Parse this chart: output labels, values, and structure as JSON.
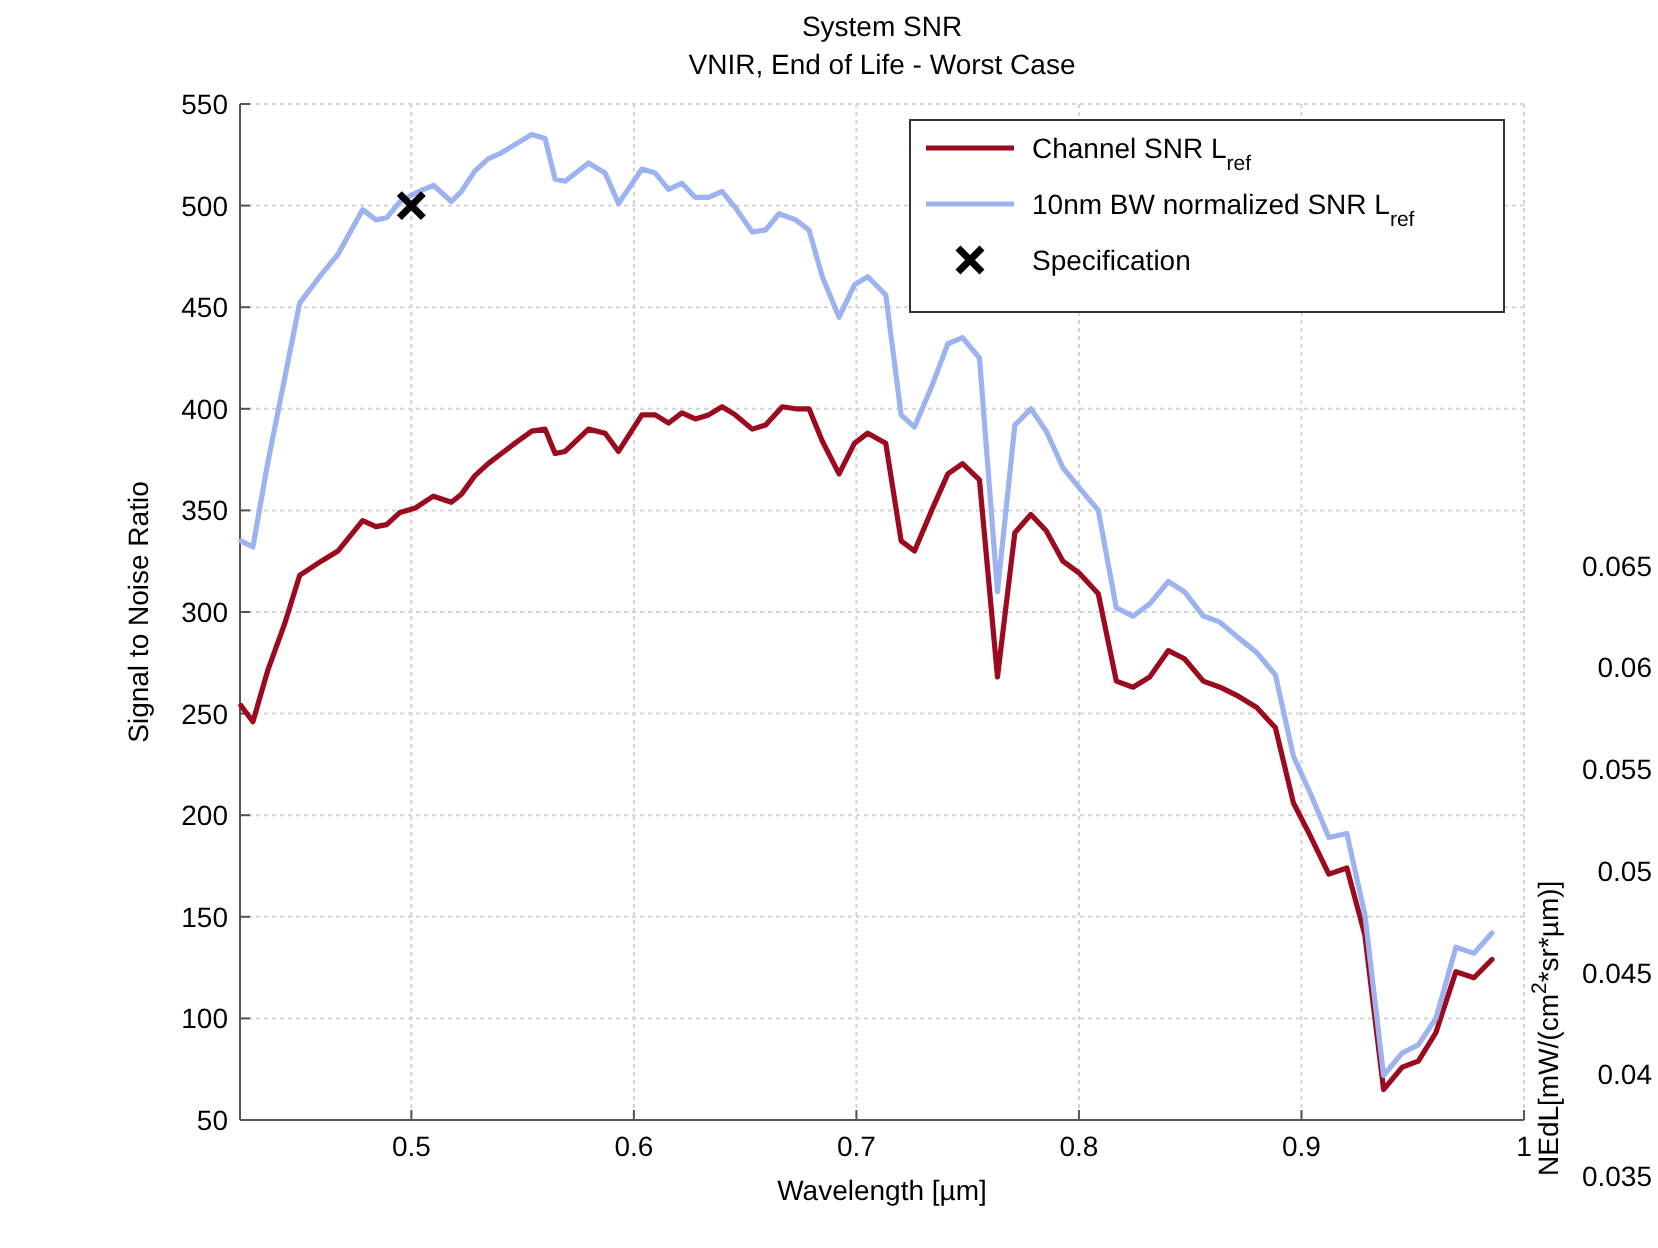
{
  "chart_data": {
    "type": "line",
    "y2label": "NEdL[mW/(cm$^{2}$*sr*µm)]",
    "y2lim": [
      0.035,
      0.0877
    ],
    "y2ticks": [
      0.035,
      0.04,
      0.045,
      0.05,
      0.055,
      0.06,
      0.065
    ],
    "title": "System SNR",
    "subtitle": "VNIR, End of Life - Worst Case",
    "xlabel": "Wavelength [µm]",
    "ylabel": "Signal to Noise Ratio",
    "xlim": [
      0.423,
      1.0
    ],
    "xticks": [
      0.5,
      0.6,
      0.7,
      0.8,
      0.9,
      1
    ],
    "ylim": [
      50,
      550
    ],
    "yticks": [
      50,
      100,
      150,
      200,
      250,
      300,
      350,
      400,
      450,
      500,
      550
    ],
    "grid": true,
    "legend": "top right",
    "line_style": "solid",
    "marker": "none",
    "series": [
      {
        "name": "Channel SNR L$_{ref}$",
        "color": "#9b0a1e",
        "x": [
          0.4234,
          0.4288,
          0.4354,
          0.443,
          0.4498,
          0.4595,
          0.467,
          0.4781,
          0.4841,
          0.4889,
          0.4949,
          0.5015,
          0.5099,
          0.518,
          0.5225,
          0.5285,
          0.5345,
          0.5405,
          0.5465,
          0.5541,
          0.5601,
          0.5646,
          0.5691,
          0.5796,
          0.5871,
          0.5931,
          0.6036,
          0.6096,
          0.6156,
          0.6216,
          0.6276,
          0.6336,
          0.6396,
          0.6456,
          0.6532,
          0.6592,
          0.6667,
          0.6727,
          0.6787,
          0.6847,
          0.6922,
          0.6991,
          0.7051,
          0.7132,
          0.7201,
          0.7261,
          0.7342,
          0.7411,
          0.7477,
          0.7553,
          0.7634,
          0.7712,
          0.7784,
          0.7853,
          0.7928,
          0.8003,
          0.8087,
          0.8168,
          0.8243,
          0.8318,
          0.8402,
          0.8474,
          0.8559,
          0.8634,
          0.8709,
          0.8799,
          0.8883,
          0.8964,
          0.9039,
          0.9123,
          0.9204,
          0.9285,
          0.9369,
          0.9453,
          0.9525,
          0.9604,
          0.9694,
          0.9775,
          0.9856
        ],
        "values": [
          254,
          246,
          271,
          294,
          318,
          325,
          330,
          345,
          342,
          343,
          349,
          351,
          357,
          354,
          358,
          367,
          373,
          378,
          383,
          389,
          390,
          378,
          379,
          390,
          388,
          379,
          397,
          397,
          393,
          398,
          395,
          397,
          401,
          397,
          390,
          392,
          401,
          400,
          400,
          384,
          368,
          383,
          388,
          383,
          335,
          330,
          351,
          368,
          373,
          365,
          268,
          339,
          348,
          340,
          325,
          319,
          309,
          266,
          263,
          268,
          281,
          277,
          266,
          263,
          259,
          253,
          243,
          206,
          190,
          171,
          174,
          141,
          65,
          76,
          79,
          93,
          123,
          120,
          129
        ]
      },
      {
        "name": "10nm BW normalized SNR L$_{ref}$",
        "color": "#9db3f0",
        "x": [
          0.4234,
          0.4288,
          0.4354,
          0.4498,
          0.4595,
          0.467,
          0.4781,
          0.4841,
          0.4889,
          0.4949,
          0.5015,
          0.5099,
          0.518,
          0.5225,
          0.5285,
          0.5345,
          0.5405,
          0.5465,
          0.5541,
          0.5601,
          0.5646,
          0.5691,
          0.5796,
          0.5871,
          0.5931,
          0.6036,
          0.6096,
          0.6156,
          0.6216,
          0.6276,
          0.6336,
          0.6396,
          0.6456,
          0.6532,
          0.6592,
          0.6652,
          0.6727,
          0.6787,
          0.6847,
          0.6922,
          0.6991,
          0.7051,
          0.7132,
          0.7201,
          0.7261,
          0.7342,
          0.7411,
          0.7477,
          0.7553,
          0.7634,
          0.7712,
          0.7784,
          0.7853,
          0.7928,
          0.8003,
          0.8087,
          0.8168,
          0.8243,
          0.8318,
          0.8402,
          0.8474,
          0.8559,
          0.8634,
          0.8709,
          0.8799,
          0.8883,
          0.8964,
          0.9039,
          0.9123,
          0.9204,
          0.9285,
          0.9369,
          0.9453,
          0.9525,
          0.9604,
          0.9694,
          0.9775,
          0.9856
        ],
        "values": [
          335,
          332,
          373,
          452,
          466,
          476,
          498,
          493,
          494,
          502,
          506,
          510,
          502,
          507,
          517,
          523,
          526,
          530,
          535,
          533,
          513,
          512,
          521,
          516,
          501,
          518,
          516,
          508,
          511,
          504,
          504,
          507,
          499,
          487,
          488,
          496,
          493,
          488,
          465,
          445,
          461,
          465,
          456,
          397,
          391,
          412,
          432,
          435,
          425,
          310,
          392,
          400,
          389,
          371,
          361,
          350,
          302,
          298,
          304,
          315,
          310,
          298,
          295,
          288,
          280,
          269,
          229,
          211,
          189,
          191,
          151,
          72,
          83,
          87,
          100,
          135,
          132,
          142
        ]
      },
      {
        "name": "Specification",
        "type": "scatter",
        "marker": "cross",
        "color": "#000000",
        "x": [
          0.5
        ],
        "values": [
          500
        ]
      }
    ]
  }
}
